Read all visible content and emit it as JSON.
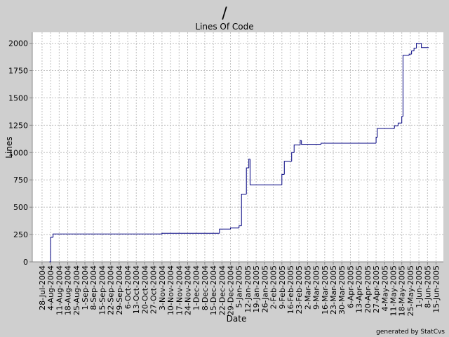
{
  "chart_data": {
    "type": "line",
    "title": "/",
    "subtitle": "Lines Of Code",
    "x_label": "Date",
    "y_label": "Lines",
    "footer": "generated by StatCvs",
    "drawstyle": "steps-post",
    "grid": true,
    "xlim": [
      "2004-07-20",
      "2005-06-21"
    ],
    "ylim": [
      0,
      2100
    ],
    "yticks": [
      0,
      250,
      500,
      750,
      1000,
      1250,
      1500,
      1750,
      2000
    ],
    "xticks": [
      {
        "value": "2004-07-28",
        "label": "28-Jul-2004"
      },
      {
        "value": "2004-08-04",
        "label": "4-Aug-2004"
      },
      {
        "value": "2004-08-11",
        "label": "11-Aug-2004"
      },
      {
        "value": "2004-08-18",
        "label": "18-Aug-2004"
      },
      {
        "value": "2004-08-25",
        "label": "25-Aug-2004"
      },
      {
        "value": "2004-09-01",
        "label": "1-Sep-2004"
      },
      {
        "value": "2004-09-08",
        "label": "8-Sep-2004"
      },
      {
        "value": "2004-09-15",
        "label": "15-Sep-2004"
      },
      {
        "value": "2004-09-22",
        "label": "22-Sep-2004"
      },
      {
        "value": "2004-09-29",
        "label": "29-Sep-2004"
      },
      {
        "value": "2004-10-06",
        "label": "6-Oct-2004"
      },
      {
        "value": "2004-10-13",
        "label": "13-Oct-2004"
      },
      {
        "value": "2004-10-20",
        "label": "20-Oct-2004"
      },
      {
        "value": "2004-10-27",
        "label": "27-Oct-2004"
      },
      {
        "value": "2004-11-03",
        "label": "3-Nov-2004"
      },
      {
        "value": "2004-11-10",
        "label": "10-Nov-2004"
      },
      {
        "value": "2004-11-17",
        "label": "17-Nov-2004"
      },
      {
        "value": "2004-11-24",
        "label": "24-Nov-2004"
      },
      {
        "value": "2004-12-01",
        "label": "1-Dec-2004"
      },
      {
        "value": "2004-12-08",
        "label": "8-Dec-2004"
      },
      {
        "value": "2004-12-15",
        "label": "15-Dec-2004"
      },
      {
        "value": "2004-12-22",
        "label": "22-Dec-2004"
      },
      {
        "value": "2004-12-29",
        "label": "29-Dec-2004"
      },
      {
        "value": "2005-01-05",
        "label": "5-Jan-2005"
      },
      {
        "value": "2005-01-12",
        "label": "12-Jan-2005"
      },
      {
        "value": "2005-01-19",
        "label": "19-Jan-2005"
      },
      {
        "value": "2005-01-26",
        "label": "26-Jan-2005"
      },
      {
        "value": "2005-02-02",
        "label": "2-Feb-2005"
      },
      {
        "value": "2005-02-09",
        "label": "9-Feb-2005"
      },
      {
        "value": "2005-02-16",
        "label": "16-Feb-2005"
      },
      {
        "value": "2005-02-23",
        "label": "23-Feb-2005"
      },
      {
        "value": "2005-03-02",
        "label": "2-Mar-2005"
      },
      {
        "value": "2005-03-09",
        "label": "9-Mar-2005"
      },
      {
        "value": "2005-03-16",
        "label": "16-Mar-2005"
      },
      {
        "value": "2005-03-23",
        "label": "23-Mar-2005"
      },
      {
        "value": "2005-03-30",
        "label": "30-Mar-2005"
      },
      {
        "value": "2005-04-06",
        "label": "6-Apr-2005"
      },
      {
        "value": "2005-04-13",
        "label": "13-Apr-2005"
      },
      {
        "value": "2005-04-20",
        "label": "20-Apr-2005"
      },
      {
        "value": "2005-04-27",
        "label": "27-Apr-2005"
      },
      {
        "value": "2005-05-04",
        "label": "4-May-2005"
      },
      {
        "value": "2005-05-11",
        "label": "11-May-2005"
      },
      {
        "value": "2005-05-18",
        "label": "18-May-2005"
      },
      {
        "value": "2005-05-25",
        "label": "25-May-2005"
      },
      {
        "value": "2005-06-01",
        "label": "1-Jun-2005"
      },
      {
        "value": "2005-06-08",
        "label": "8-Jun-2005"
      },
      {
        "value": "2005-06-15",
        "label": "15-Jun-2005"
      }
    ],
    "x": [
      "2004-08-03",
      "2004-08-04",
      "2004-08-06",
      "2004-11-03",
      "2004-12-20",
      "2004-12-29",
      "2005-01-05",
      "2005-01-07",
      "2005-01-11",
      "2005-01-13",
      "2005-01-14",
      "2005-02-09",
      "2005-02-11",
      "2005-02-17",
      "2005-02-19",
      "2005-02-24",
      "2005-02-25",
      "2005-03-13",
      "2005-04-27",
      "2005-04-28",
      "2005-05-12",
      "2005-05-15",
      "2005-05-18",
      "2005-05-19",
      "2005-05-24",
      "2005-05-26",
      "2005-05-28",
      "2005-05-30",
      "2005-06-03",
      "2005-06-09"
    ],
    "series": [
      {
        "color": "#000080",
        "values": [
          0,
          225,
          255,
          262,
          300,
          310,
          330,
          620,
          860,
          940,
          705,
          800,
          920,
          1000,
          1070,
          1110,
          1075,
          1085,
          1140,
          1220,
          1245,
          1270,
          1330,
          1890,
          1900,
          1930,
          1955,
          2000,
          1960,
          1960
        ]
      }
    ]
  }
}
